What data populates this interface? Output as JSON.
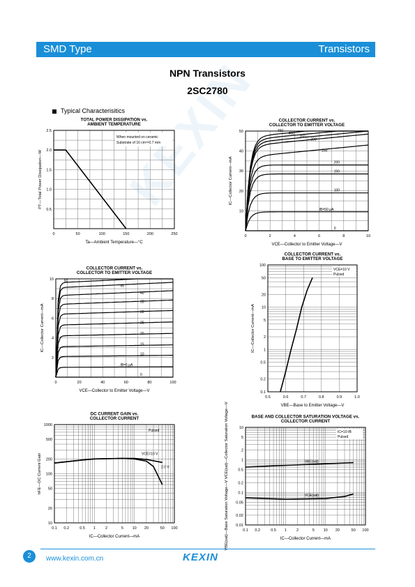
{
  "header": {
    "left": "SMD Type",
    "right": "Transistors"
  },
  "title": {
    "line1": "NPN  Transistors",
    "line2": "2SC2780"
  },
  "section": "Typical  Characterisitics",
  "watermark": "KEXIN",
  "footer": {
    "page": "2",
    "url": "www.kexin.com.cn",
    "logo": "KEXIN"
  },
  "colors": {
    "brand": "#1a8fd8"
  },
  "chart_data": [
    {
      "type": "line",
      "title": "TOTAL POWER DISSIPATION vs. AMBIENT TEMPERATURE",
      "xlabel": "Ta—Ambient Temperature—°C",
      "ylabel": "PT—Total Power Dissipation—W",
      "xlim": [
        0,
        250
      ],
      "ylim": [
        0,
        2.5
      ],
      "xticks": [
        "0",
        "50",
        "100",
        "150",
        "200",
        "250"
      ],
      "yticks": [
        "0.5",
        "1.0",
        "1.5",
        "2.0",
        "2.5"
      ],
      "annotation_lines": [
        "When mounted on ceramic",
        "Substrate of 16 cm²×0.7 mm"
      ],
      "series": [
        {
          "x": [
            0,
            25,
            150
          ],
          "y": [
            2.0,
            2.0,
            0
          ]
        }
      ]
    },
    {
      "type": "line",
      "title": "COLLECTOR CURRENT vs. COLLECTOR TO EMITTER VOLTAGE",
      "xlabel": "VCE—Collector to Emitter Voltage—V",
      "ylabel": "IC—Collector Current—mA",
      "xlim": [
        0,
        10
      ],
      "ylim": [
        0,
        50
      ],
      "xticks": [
        "0",
        "2",
        "4",
        "6",
        "8",
        "10"
      ],
      "yticks": [
        "10",
        "20",
        "30",
        "40",
        "50"
      ],
      "curve_labels": [
        "450",
        "400",
        "350",
        "300",
        "250",
        "200",
        "150",
        "100",
        "IB=50 μA",
        "0"
      ],
      "curve_levels": [
        47,
        45.5,
        44,
        42.5,
        37,
        33,
        28.5,
        19,
        9.5,
        0
      ]
    },
    {
      "type": "line",
      "title": "COLLECTOR CURRENT vs. COLLECTOR TO EMITTER VOLTAGE",
      "xlabel": "VCE—Collector to Emitter Voltage—V",
      "ylabel": "IC—Collector Current—mA",
      "xlim": [
        0,
        100
      ],
      "ylim": [
        0,
        10
      ],
      "xticks": [
        "0",
        "20",
        "40",
        "60",
        "80",
        "100"
      ],
      "yticks": [
        "2",
        "4",
        "6",
        "8",
        "10"
      ],
      "curve_labels": [
        "50",
        "45",
        "40",
        "35",
        "30",
        "25",
        "20",
        "15",
        "10",
        "IB=5 μA",
        "0"
      ],
      "curve_levels": [
        9.6,
        9.1,
        8.3,
        7.4,
        6.4,
        5.3,
        4.2,
        3.1,
        2.1,
        1.0,
        0
      ]
    },
    {
      "type": "line",
      "title": "COLLECTOR CURRENT vs. BASE TO EMITTER VOLTAGE",
      "xlabel": "VBE—Base to Emitter Voltage—V",
      "ylabel": "IC—Collector Current—mA",
      "xlim": [
        0.5,
        1.0
      ],
      "ylim": [
        0.1,
        100
      ],
      "yscale": "log",
      "xticks": [
        "0.5",
        "0.6",
        "0.7",
        "0.8",
        "0.9",
        "1.0"
      ],
      "yticks": [
        "0.1",
        "0.2",
        "0.5",
        "1",
        "2",
        "5",
        "10",
        "20",
        "50",
        "100"
      ],
      "legend": [
        "VCE=10 V",
        "Pulsed"
      ],
      "series": [
        {
          "x": [
            0.57,
            0.6,
            0.63,
            0.66,
            0.69,
            0.72,
            0.75
          ],
          "y": [
            0.1,
            0.3,
            1,
            3,
            10,
            25,
            50
          ]
        }
      ]
    },
    {
      "type": "line",
      "title": "DC CURRENT GAIN vs. COLLECTOR CURRENT",
      "xlabel": "IC—Collector Current—mA",
      "ylabel": "hFE—DC Current Gain",
      "xlim": [
        0.1,
        100
      ],
      "ylim": [
        10,
        1000
      ],
      "xscale": "log",
      "yscale": "log",
      "xticks": [
        "0.1",
        "0.2",
        "0.5",
        "1",
        "2",
        "5",
        "10",
        "20",
        "50",
        "100"
      ],
      "yticks": [
        "10",
        "20",
        "50",
        "100",
        "200",
        "500",
        "1000"
      ],
      "legend": [
        "Pulsed"
      ],
      "series": [
        {
          "name": "VCE=10 V",
          "x": [
            0.1,
            0.5,
            1,
            5,
            10,
            20,
            50
          ],
          "y": [
            165,
            190,
            200,
            205,
            205,
            195,
            170
          ]
        },
        {
          "name": "2.0 V",
          "x": [
            0.1,
            0.5,
            1,
            5,
            10,
            20,
            30,
            50
          ],
          "y": [
            165,
            190,
            200,
            205,
            200,
            180,
            140,
            60
          ]
        }
      ]
    },
    {
      "type": "line",
      "title": "BASE AND COLLECTOR SATURATION VOLTAGE vs. COLLECTOR CURRENT",
      "xlabel": "IC—Collector Current—mA",
      "ylabel": "VBE(sat)—Base Saturation Voltage—V  VCE(sat)—Collector Saturation Voltage—V",
      "xlim": [
        0.1,
        100
      ],
      "ylim": [
        0.01,
        10
      ],
      "xscale": "log",
      "yscale": "log",
      "xticks": [
        "0.1",
        "0.2",
        "0.5",
        "1",
        "2",
        "5",
        "10",
        "20",
        "50",
        "100"
      ],
      "yticks": [
        "0.01",
        "0.02",
        "0.05",
        "0.1",
        "0.2",
        "0.5",
        "1",
        "2",
        "5",
        "10"
      ],
      "legend": [
        "IC=10·IB",
        "Pulsed"
      ],
      "series": [
        {
          "name": "VBE(sat)",
          "x": [
            0.1,
            1,
            10,
            50
          ],
          "y": [
            0.6,
            0.68,
            0.76,
            0.82
          ]
        },
        {
          "name": "VCE(sat)",
          "x": [
            0.1,
            1,
            10,
            30,
            50
          ],
          "y": [
            0.068,
            0.062,
            0.065,
            0.075,
            0.09
          ]
        }
      ]
    }
  ]
}
